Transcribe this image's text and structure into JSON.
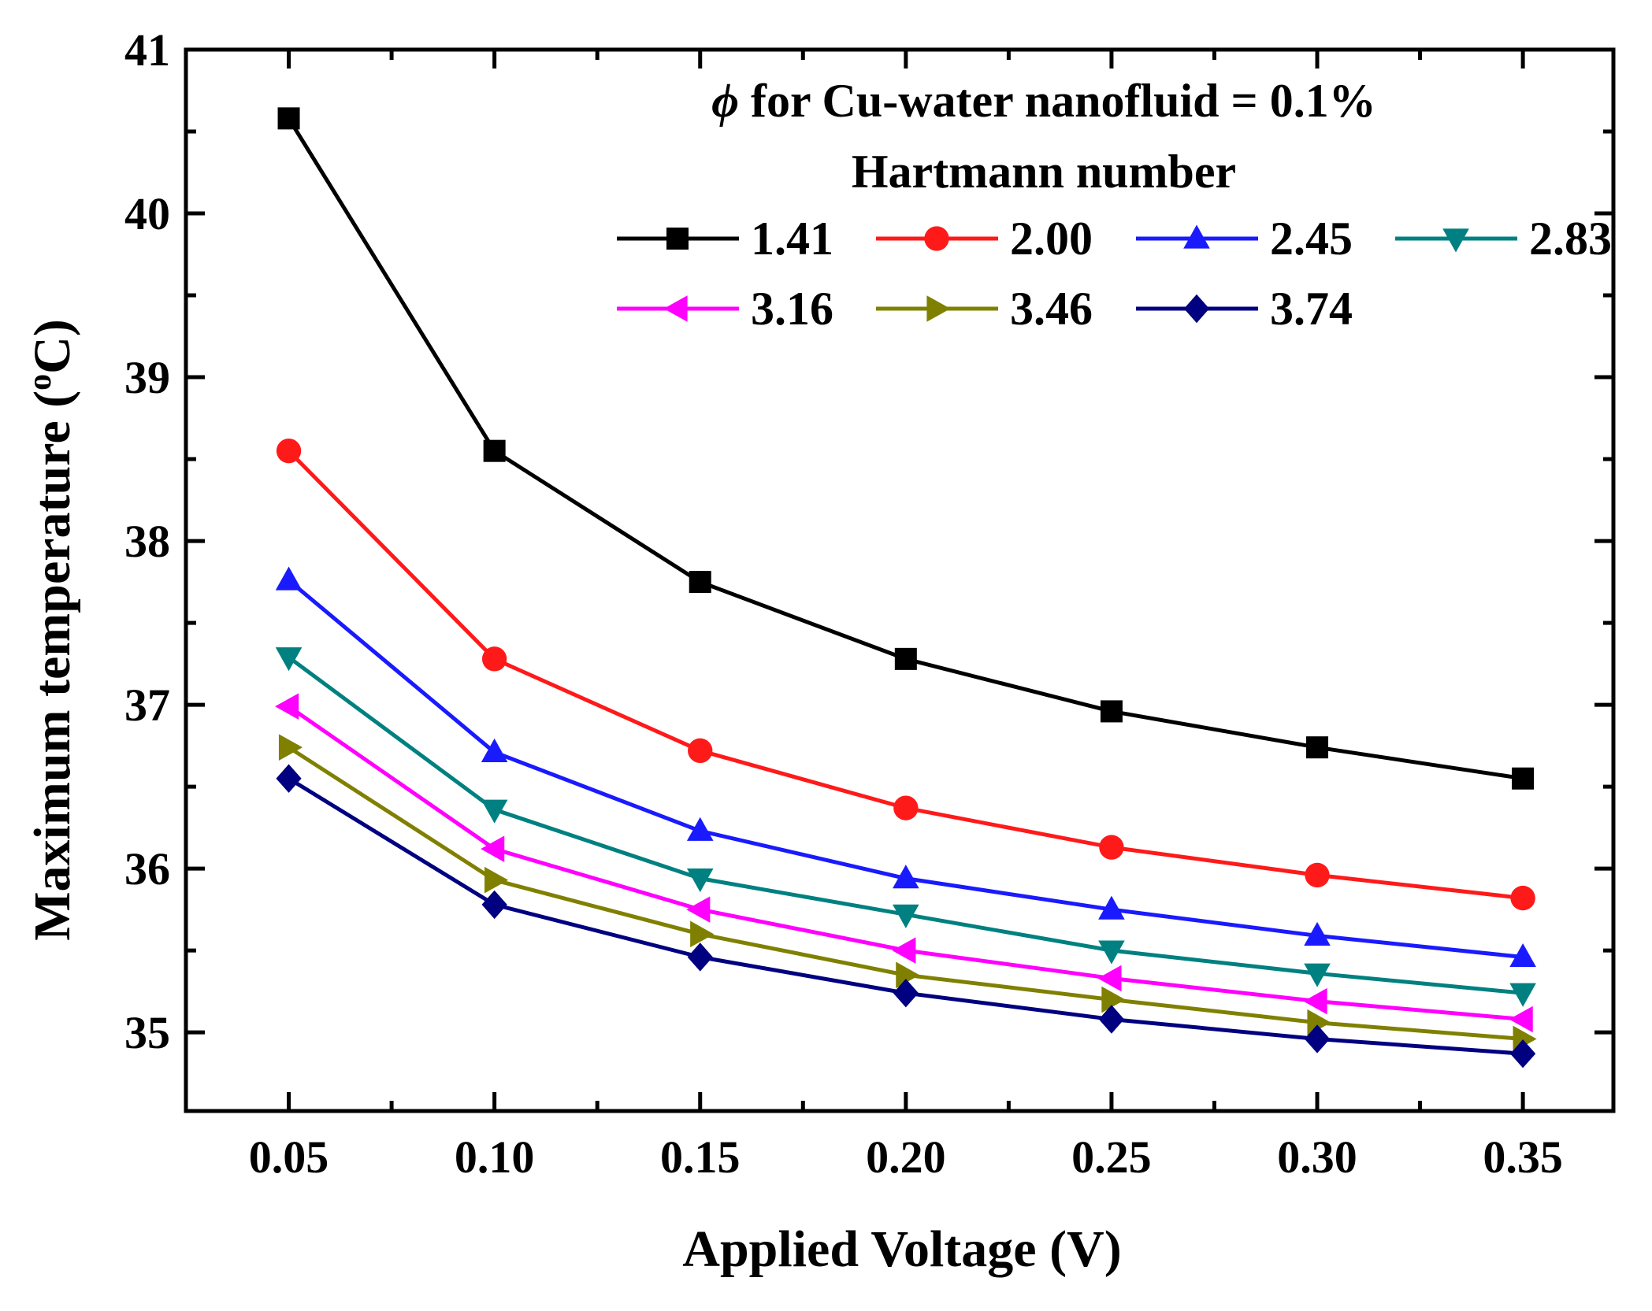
{
  "chart_data": {
    "type": "line",
    "title": "",
    "xlabel": "Applied Voltage (V)",
    "ylabel_main": "Maximum temperature (",
    "ylabel_sup": "o",
    "ylabel_end": "C)",
    "x": [
      0.05,
      0.1,
      0.15,
      0.2,
      0.25,
      0.3,
      0.35
    ],
    "x_tick_labels": [
      "0.05",
      "0.10",
      "0.15",
      "0.20",
      "0.25",
      "0.30",
      "0.35"
    ],
    "xlim": [
      0.025,
      0.372
    ],
    "y_ticks": [
      35,
      36,
      37,
      38,
      39,
      40,
      41
    ],
    "y_tick_labels": [
      "35",
      "36",
      "37",
      "38",
      "39",
      "40",
      "41"
    ],
    "ylim": [
      34.52,
      41.0
    ],
    "legend": {
      "title_symbol": "ϕ",
      "title_line1": " for Cu-water nanofluid = 0.1%",
      "title_line2": "Hartmann number",
      "position": "top-right"
    },
    "series": [
      {
        "name": "1.41",
        "color": "#000000",
        "marker": "square",
        "values": [
          40.58,
          38.55,
          37.75,
          37.28,
          36.96,
          36.74,
          36.55
        ]
      },
      {
        "name": "2.00",
        "color": "#ff1a1a",
        "marker": "circle",
        "values": [
          38.55,
          37.28,
          36.72,
          36.37,
          36.13,
          35.96,
          35.82
        ]
      },
      {
        "name": "2.45",
        "color": "#1a1aff",
        "marker": "triangle-up",
        "values": [
          37.76,
          36.71,
          36.23,
          35.94,
          35.75,
          35.59,
          35.46
        ]
      },
      {
        "name": "2.83",
        "color": "#008080",
        "marker": "triangle-down",
        "values": [
          37.29,
          36.36,
          35.94,
          35.72,
          35.5,
          35.36,
          35.24
        ]
      },
      {
        "name": "3.16",
        "color": "#ff00ff",
        "marker": "triangle-left",
        "values": [
          36.99,
          36.12,
          35.75,
          35.5,
          35.33,
          35.19,
          35.08
        ]
      },
      {
        "name": "3.46",
        "color": "#808000",
        "marker": "triangle-right",
        "values": [
          36.74,
          35.93,
          35.6,
          35.35,
          35.2,
          35.06,
          34.96
        ]
      },
      {
        "name": "3.74",
        "color": "#000080",
        "marker": "diamond",
        "values": [
          36.55,
          35.78,
          35.46,
          35.24,
          35.08,
          34.96,
          34.87
        ]
      }
    ]
  }
}
